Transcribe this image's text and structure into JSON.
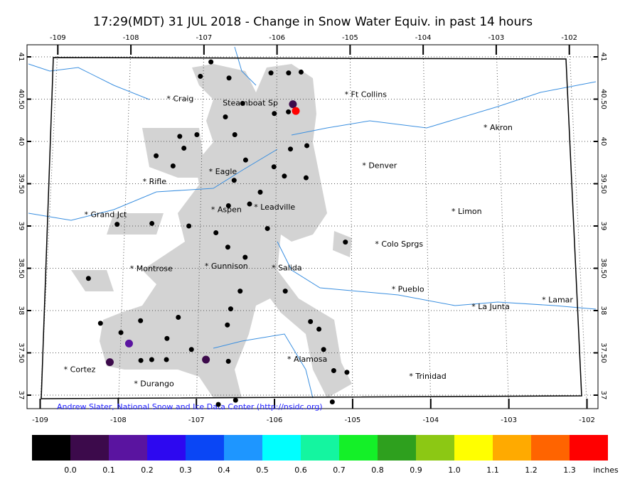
{
  "title": "17:29(MDT)  31 JUL 2018 - Change in Snow Water Equiv. in past 14 hours",
  "map": {
    "type": "map",
    "grid": true,
    "lon_ticks": [
      -109,
      -108,
      -107,
      -106,
      -105,
      -104,
      -103,
      -102
    ],
    "lat_ticks": [
      37,
      {
        "value": 37.5,
        "label": "37.50"
      },
      38,
      {
        "value": 38.5,
        "label": "38.50"
      },
      39,
      {
        "value": 39.5,
        "label": "39.50"
      },
      40,
      {
        "value": 40.5,
        "label": "40.50"
      },
      41
    ],
    "cities": [
      {
        "label": "* Craig",
        "lon": -107.49,
        "lat": 40.5
      },
      {
        "label": "Steamboat Sp",
        "lon": -106.73,
        "lat": 40.45
      },
      {
        "label": "* Ft Collins",
        "lon": -105.08,
        "lat": 40.55
      },
      {
        "label": "* Akron",
        "lon": -103.21,
        "lat": 40.16
      },
      {
        "label": "* Denver",
        "lon": -104.85,
        "lat": 39.71
      },
      {
        "label": "* Eagle",
        "lon": -106.9,
        "lat": 39.64
      },
      {
        "label": "* Rifle",
        "lon": -107.78,
        "lat": 39.52
      },
      {
        "label": "* Leadville",
        "lon": -106.29,
        "lat": 39.22
      },
      {
        "label": "* Aspen",
        "lon": -106.86,
        "lat": 39.19
      },
      {
        "label": "* Grand Jct",
        "lon": -108.54,
        "lat": 39.13
      },
      {
        "label": "* Limon",
        "lon": -103.67,
        "lat": 39.17
      },
      {
        "label": "* Colo Sprgs",
        "lon": -104.69,
        "lat": 38.78
      },
      {
        "label": "* Montrose",
        "lon": -107.91,
        "lat": 38.49
      },
      {
        "label": "* Gunnison",
        "lon": -106.93,
        "lat": 38.52
      },
      {
        "label": "* Salida",
        "lon": -106.05,
        "lat": 38.5
      },
      {
        "label": "* Pueblo",
        "lon": -104.48,
        "lat": 38.25
      },
      {
        "label": "* La Junta",
        "lon": -103.44,
        "lat": 38.04
      },
      {
        "label": "* Lamar",
        "lon": -102.52,
        "lat": 38.12
      },
      {
        "label": "* Alamosa",
        "lon": -105.84,
        "lat": 37.42
      },
      {
        "label": "* Cortez",
        "lon": -108.72,
        "lat": 37.3
      },
      {
        "label": "* Durango",
        "lon": -107.81,
        "lat": 37.13
      },
      {
        "label": "* Trinidad",
        "lon": -104.27,
        "lat": 37.22
      }
    ],
    "stations": {
      "lon": [
        -106.9,
        -107.04,
        -106.65,
        -105.67,
        -105.84,
        -106.08,
        -105.78,
        -105.74,
        -105.84,
        -106.03,
        -106.46,
        -106.69,
        -106.56,
        -107.07,
        -107.3,
        -107.24,
        -107.61,
        -107.38,
        -106.41,
        -106.56,
        -106.03,
        -105.89,
        -105.6,
        -105.59,
        -105.81,
        -106.21,
        -106.35,
        -106.63,
        -107.15,
        -107.64,
        -108.1,
        -106.79,
        -106.11,
        -106.4,
        -106.63,
        -105.08,
        -108.45,
        -106.46,
        -105.87,
        -105.54,
        -105.43,
        -105.37,
        -105.24,
        -105.07,
        -105.26,
        -106.5,
        -106.72,
        -106.6,
        -106.89,
        -107.89,
        -108.13,
        -108.27,
        -108.0,
        -107.75,
        -107.26,
        -107.4,
        -107.59,
        -107.08,
        -106.62,
        -106.58,
        -107.73,
        -107.4
      ],
      "lat": [
        40.94,
        40.77,
        40.75,
        40.82,
        40.81,
        40.81,
        40.44,
        40.36,
        40.35,
        40.33,
        40.45,
        40.29,
        40.08,
        40.08,
        40.06,
        39.92,
        39.83,
        39.71,
        39.78,
        39.54,
        39.7,
        39.59,
        39.57,
        39.95,
        39.91,
        39.4,
        39.26,
        39.24,
        39.0,
        39.03,
        39.02,
        38.92,
        38.97,
        38.63,
        38.75,
        38.81,
        38.38,
        38.23,
        38.23,
        37.87,
        37.78,
        37.54,
        37.29,
        37.27,
        36.92,
        36.94,
        36.89,
        37.4,
        37.42,
        37.61,
        37.39,
        37.85,
        37.74,
        37.88,
        37.92,
        37.67,
        37.42,
        37.54,
        37.83,
        38.02,
        37.41,
        37.42
      ],
      "values": [
        0,
        0,
        0,
        0,
        0,
        0,
        0.05,
        1.35,
        0,
        0,
        0,
        0,
        0,
        0,
        0,
        0,
        0,
        0,
        0,
        0,
        0,
        0,
        0,
        0,
        0,
        0,
        0,
        0,
        0,
        0,
        0,
        0,
        0,
        0,
        0,
        0,
        0,
        0,
        0,
        0,
        0,
        0,
        0,
        0,
        0,
        0,
        0,
        0,
        0.05,
        0.15,
        0.05,
        0,
        0,
        0,
        0,
        0,
        0,
        0,
        0,
        0,
        0,
        0
      ]
    },
    "credit": "Andrew Slater, National Snow and Ice Data Center (http://nsidc.org)"
  },
  "colorbar": {
    "colors": [
      "#000000",
      "#3c0a4b",
      "#5a14a0",
      "#2d08f0",
      "#0a46f5",
      "#1e96ff",
      "#00ffff",
      "#14f5a0",
      "#14f028",
      "#2ea01e",
      "#8cc814",
      "#ffff00",
      "#ffaa00",
      "#ff6400",
      "#ff0000"
    ],
    "ticks": [
      {
        "value": 0,
        "label": "0.0"
      },
      0.1,
      0.2,
      0.3,
      0.4,
      0.5,
      0.6,
      0.7,
      0.8,
      0.9,
      {
        "value": 1,
        "label": "1.0"
      },
      1.1,
      1.2,
      1.3
    ],
    "unit": "inches"
  }
}
